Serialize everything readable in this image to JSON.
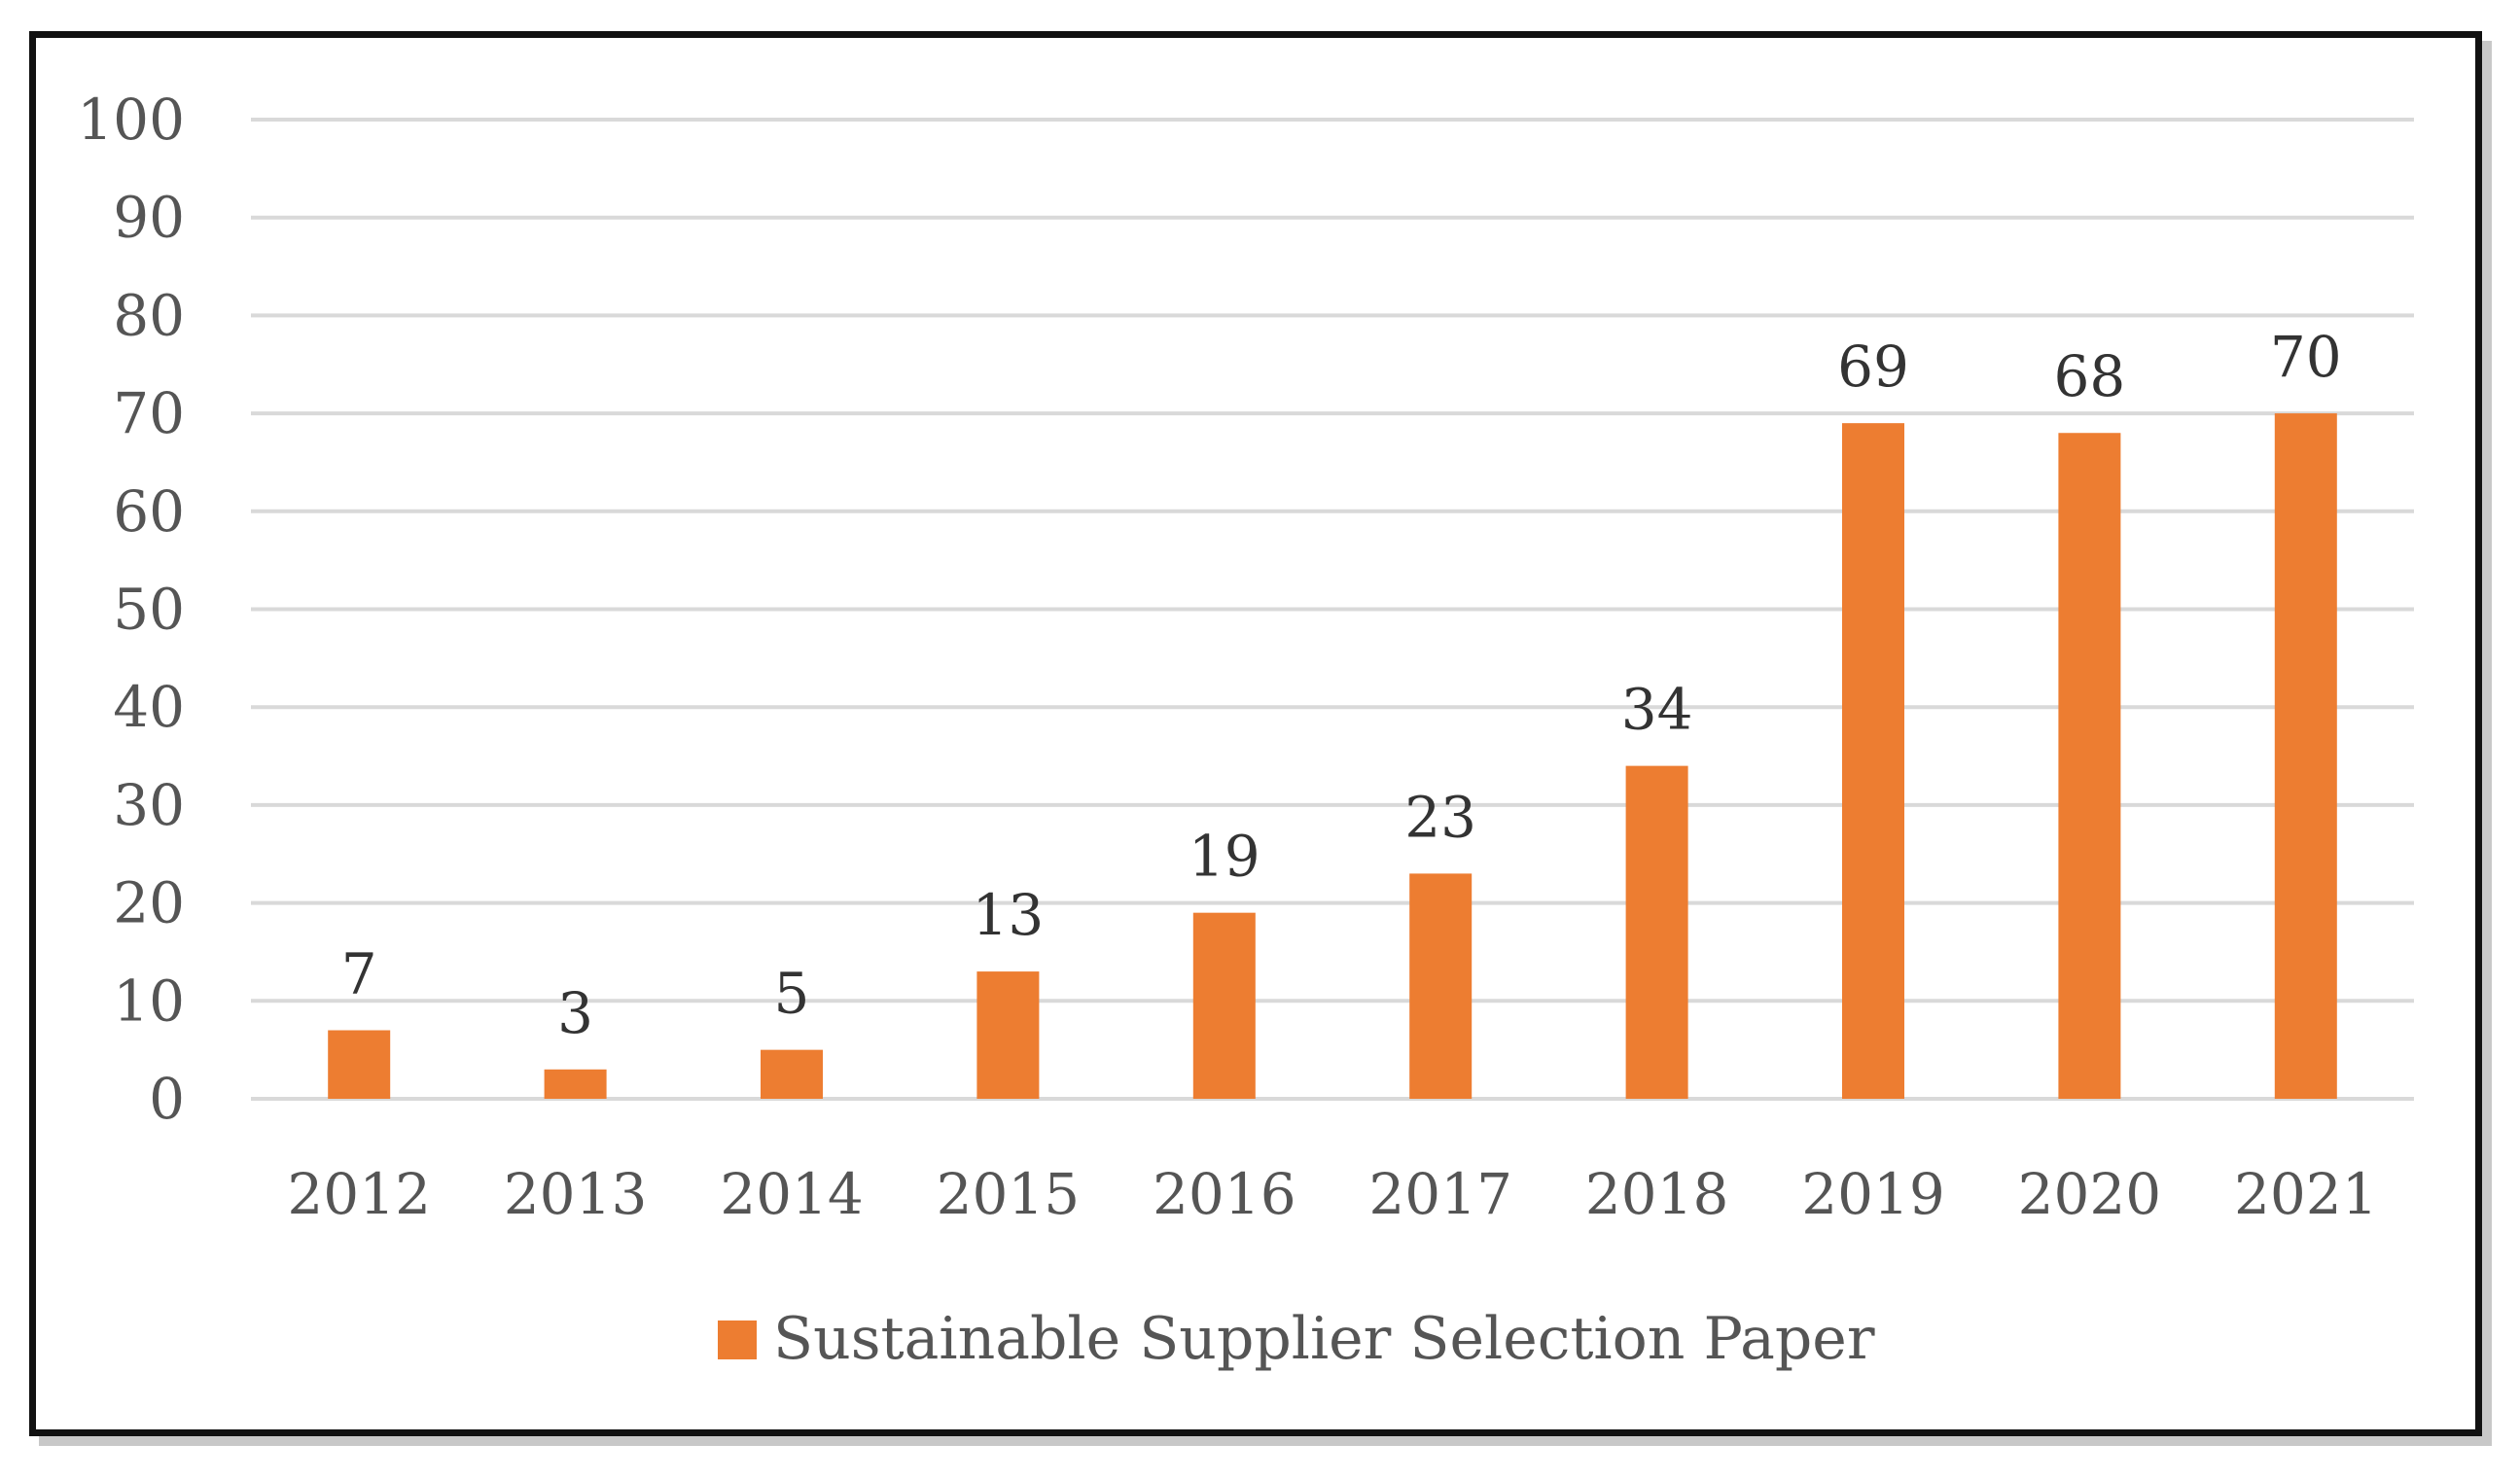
{
  "chart_data": {
    "type": "bar",
    "title": "",
    "xlabel": "",
    "ylabel": "",
    "categories": [
      "2012",
      "2013",
      "2014",
      "2015",
      "2016",
      "2017",
      "2018",
      "2019",
      "2020",
      "2021"
    ],
    "series": [
      {
        "name": "Sustainable Supplier Selection Paper",
        "values": [
          7,
          3,
          5,
          13,
          19,
          23,
          34,
          69,
          68,
          70
        ],
        "color": "#ed7d31"
      }
    ],
    "ylim": [
      0,
      100
    ],
    "yticks": [
      "0",
      "10",
      "20",
      "30",
      "40",
      "50",
      "60",
      "70",
      "80",
      "90",
      "100"
    ],
    "grid": true,
    "legend_position": "bottom"
  }
}
